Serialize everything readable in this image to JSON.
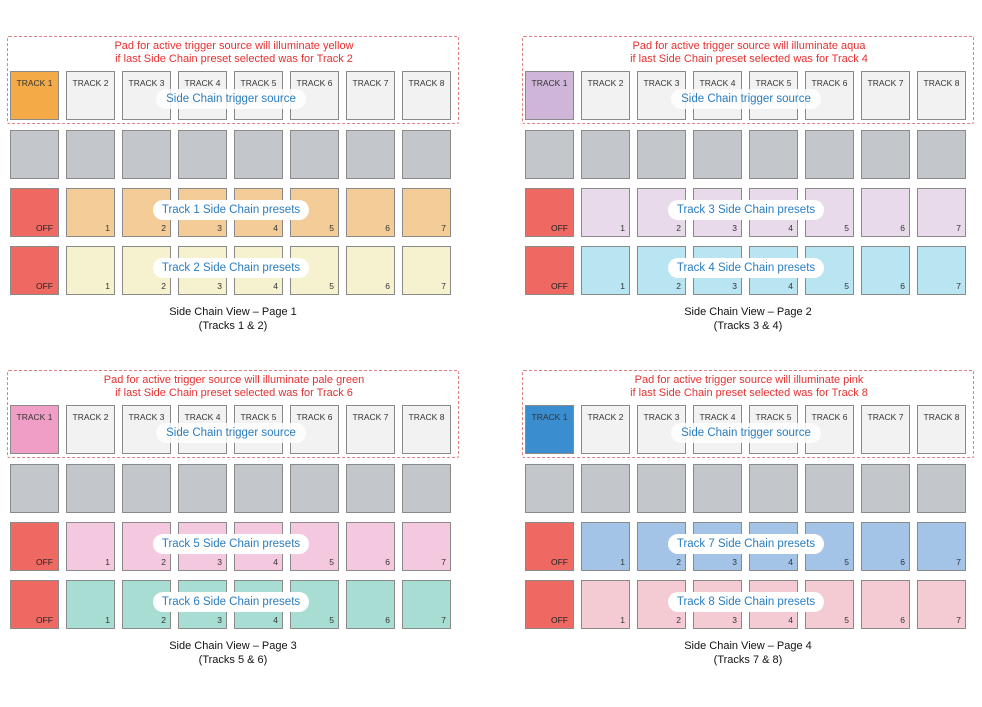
{
  "track_labels": [
    "TRACK 1",
    "TRACK 2",
    "TRACK 3",
    "TRACK 4",
    "TRACK 5",
    "TRACK 6",
    "TRACK 7",
    "TRACK 8"
  ],
  "preset_numbers": [
    "1",
    "2",
    "3",
    "4",
    "5",
    "6",
    "7"
  ],
  "off_label": "OFF",
  "trigger_source_label": "Side Chain trigger source",
  "colors": {
    "inactive_trigger": "#f2f2f2",
    "grey_row": "#c3c6cb",
    "off": "#ef6963"
  },
  "panels": [
    {
      "note_line1": "Pad for active trigger source will illuminate yellow",
      "note_line2": "if last Side Chain preset selected was for Track 2",
      "active_color": "#f5aa48",
      "row1_label": "Track 1 Side Chain presets",
      "row1_color": "#f4cc98",
      "row2_label": "Track 2 Side Chain presets",
      "row2_color": "#f6f2cf",
      "caption_line1": "Side Chain View – Page 1",
      "caption_line2": "(Tracks 1 & 2)"
    },
    {
      "note_line1": "Pad for active trigger source will illuminate aqua",
      "note_line2": "if last Side Chain preset selected was for Track 4",
      "active_color": "#cfb5d8",
      "row1_label": "Track 3 Side Chain presets",
      "row1_color": "#e8d9eb",
      "row2_label": "Track 4 Side Chain presets",
      "row2_color": "#b9e4f1",
      "caption_line1": "Side Chain View – Page 2",
      "caption_line2": "(Tracks 3 & 4)"
    },
    {
      "note_line1": "Pad for active trigger source will illuminate pale green",
      "note_line2": "if last Side Chain preset selected was for Track 6",
      "active_color": "#f19ec6",
      "row1_label": "Track 5 Side Chain presets",
      "row1_color": "#f4c8df",
      "row2_label": "Track 6 Side Chain presets",
      "row2_color": "#a8ddd3",
      "caption_line1": "Side Chain View – Page 3",
      "caption_line2": "(Tracks 5 & 6)"
    },
    {
      "note_line1": "Pad for active trigger source will illuminate pink",
      "note_line2": "if last Side Chain preset selected was for Track 8",
      "active_color": "#3a8dcf",
      "row1_label": "Track 7 Side Chain presets",
      "row1_color": "#a3c4e6",
      "row2_label": "Track 8 Side Chain presets",
      "row2_color": "#f4cbd3",
      "caption_line1": "Side Chain View – Page 4",
      "caption_line2": "(Tracks 7 & 8)"
    }
  ]
}
